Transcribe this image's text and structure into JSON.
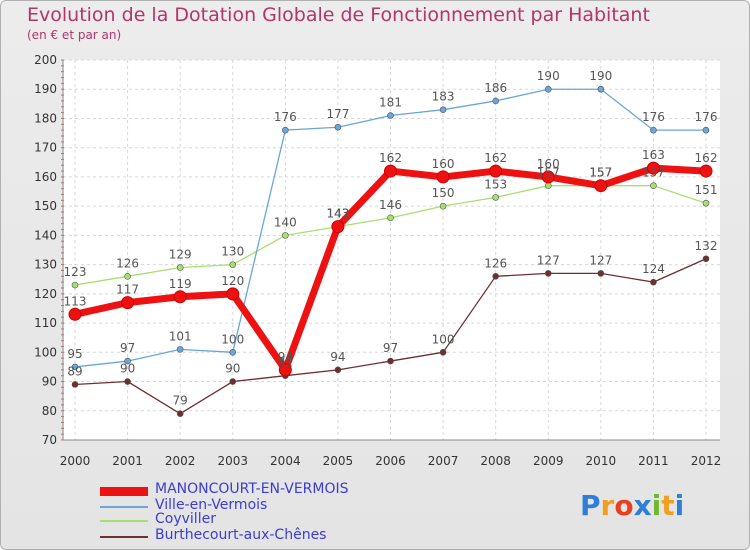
{
  "title": "Evolution de la Dotation Globale de Fonctionnement par Habitant",
  "subtitle": "(en € et par an)",
  "logo": {
    "letters": [
      "P",
      "r",
      "o",
      "x",
      "i",
      "t",
      "i"
    ],
    "colors": [
      "#2f7fd6",
      "#f0a020",
      "#e84020",
      "#2f7fd6",
      "#70b830",
      "#f0a020",
      "#2f7fd6"
    ]
  },
  "chart_data": {
    "type": "line",
    "title": "Evolution de la Dotation Globale de Fonctionnement par Habitant",
    "subtitle": "(en € et par an)",
    "x": [
      "2000",
      "2001",
      "2002",
      "2003",
      "2004",
      "2005",
      "2006",
      "2007",
      "2008",
      "2009",
      "2010",
      "2011",
      "2012"
    ],
    "ylim": [
      70,
      200
    ],
    "yticks": [
      70,
      80,
      90,
      100,
      110,
      120,
      130,
      140,
      150,
      160,
      170,
      180,
      190,
      200
    ],
    "grid": true,
    "legend_position": "bottom-left",
    "series": [
      {
        "name": "MANONCOURT-EN-VERMOIS",
        "color": "#ee1111",
        "values": [
          113,
          117,
          119,
          120,
          94,
          143,
          162,
          160,
          162,
          160,
          157,
          163,
          162
        ]
      },
      {
        "name": "Ville-en-Vermois",
        "color": "#6aa6d8",
        "values": [
          95,
          97,
          101,
          100,
          176,
          177,
          181,
          183,
          186,
          190,
          190,
          176,
          176
        ]
      },
      {
        "name": "Coyviller",
        "color": "#a6e06e",
        "values": [
          123,
          126,
          129,
          130,
          140,
          143,
          146,
          150,
          153,
          157,
          157,
          157,
          151
        ]
      },
      {
        "name": "Burthecourt-aux-Chênes",
        "color": "#6e2f2f",
        "values": [
          89,
          90,
          79,
          90,
          92,
          94,
          97,
          100,
          126,
          127,
          127,
          124,
          132
        ]
      }
    ]
  }
}
